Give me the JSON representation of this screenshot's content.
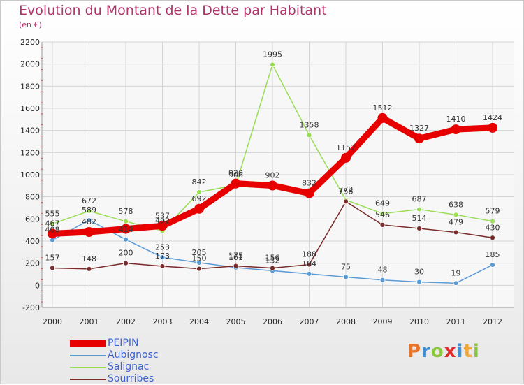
{
  "title": "Evolution du Montant de la Dette par Habitant",
  "subtitle": "(en €)",
  "logo": {
    "text": "Proxiti",
    "letters": [
      "P",
      "r",
      "o",
      "x",
      "i",
      "t",
      "i"
    ],
    "colors": [
      "#e8742a",
      "#3b8fd6",
      "#8cc63f",
      "#e02b2b",
      "#3b8fd6",
      "#f2a93b",
      "#8cc63f"
    ]
  },
  "chart_data": {
    "type": "line",
    "title": "Evolution du Montant de la Dette par Habitant",
    "subtitle": "(en €)",
    "x": [
      "2000",
      "2001",
      "2002",
      "2003",
      "2004",
      "2005",
      "2006",
      "2007",
      "2008",
      "2009",
      "2010",
      "2011",
      "2012"
    ],
    "ylim": [
      -200,
      2200
    ],
    "yticks": [
      "-200",
      "0",
      "200",
      "400",
      "600",
      "800",
      "1000",
      "1200",
      "1400",
      "1600",
      "1800",
      "2000",
      "2200"
    ],
    "grid": true,
    "legend": "bottom-left",
    "series": [
      {
        "name": "PEIPIN",
        "color": "#e60000",
        "values": [
          467,
          482,
          510,
          537,
          692,
          920,
          902,
          832,
          1152,
          1512,
          1327,
          1410,
          1424
        ],
        "labels": [
          "467",
          "482",
          "",
          "537",
          "692",
          "920",
          "902",
          "832",
          "1152",
          "1512",
          "1327",
          "1410",
          "1424"
        ]
      },
      {
        "name": "Aubignosc",
        "color": "#5b9bd5",
        "values": [
          408,
          589,
          414,
          253,
          205,
          161,
          132,
          104,
          75,
          48,
          30,
          19,
          185
        ],
        "labels": [
          "408",
          "589",
          "414",
          "253",
          "205",
          "161",
          "132",
          "104",
          "75",
          "48",
          "30",
          "19",
          "185"
        ]
      },
      {
        "name": "Salignac",
        "color": "#99dd55",
        "values": [
          555,
          672,
          578,
          492,
          842,
          906,
          1995,
          1358,
          772,
          649,
          687,
          638,
          579
        ],
        "labels": [
          "555",
          "672",
          "578",
          "492",
          "842",
          "906",
          "1995",
          "1358",
          "772",
          "649",
          "687",
          "638",
          "579"
        ]
      },
      {
        "name": "Sourribes",
        "color": "#7a2a2a",
        "values": [
          157,
          148,
          200,
          173,
          150,
          175,
          156,
          188,
          758,
          546,
          514,
          479,
          430
        ],
        "labels": [
          "157",
          "148",
          "200",
          "173",
          "150",
          "175",
          "156",
          "188",
          "758",
          "546",
          "514",
          "479",
          "430"
        ]
      }
    ]
  }
}
